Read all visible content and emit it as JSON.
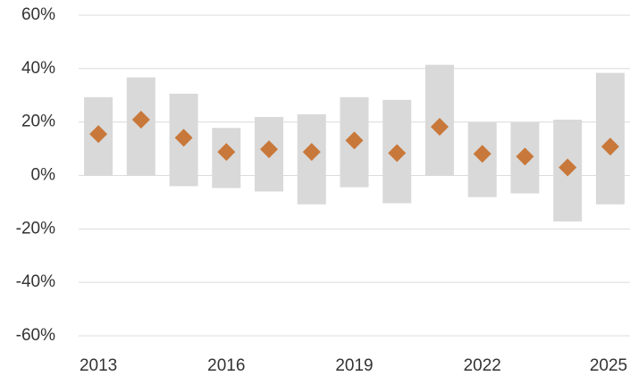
{
  "chart_data": {
    "type": "range",
    "x": [
      2013,
      2014,
      2015,
      2016,
      2017,
      2018,
      2019,
      2020,
      2021,
      2022,
      2023,
      2024,
      2025
    ],
    "low": [
      0,
      0,
      -4,
      -4.7,
      -6,
      -10.8,
      -4.4,
      -10.4,
      0,
      -8.1,
      -6.7,
      -17.2,
      -10.8
    ],
    "high": [
      29.3,
      36.7,
      30.6,
      17.8,
      21.9,
      22.9,
      29.3,
      28.3,
      41.4,
      19.9,
      20,
      20.9,
      38.4
    ],
    "values": [
      15.5,
      20.9,
      14.1,
      8.8,
      9.8,
      8.8,
      13.1,
      8.4,
      18.2,
      8.1,
      7.1,
      3,
      10.8
    ],
    "range_color": "#d9d9d9",
    "marker_color": "#c8783a",
    "xlim": [
      2012.6,
      2025.4
    ],
    "xticks": [
      2013,
      2016,
      2019,
      2022,
      2025
    ],
    "ylim": [
      -62,
      64
    ],
    "yticks": [
      {
        "value": -60,
        "label": "-60%"
      },
      {
        "value": -40,
        "label": "-40%"
      },
      {
        "value": -20,
        "label": "-20%"
      },
      {
        "value": 0,
        "label": "0%"
      },
      {
        "value": 20,
        "label": "20%"
      },
      {
        "value": 40,
        "label": "40%"
      },
      {
        "value": 60,
        "label": "60%"
      }
    ],
    "grid": true
  }
}
